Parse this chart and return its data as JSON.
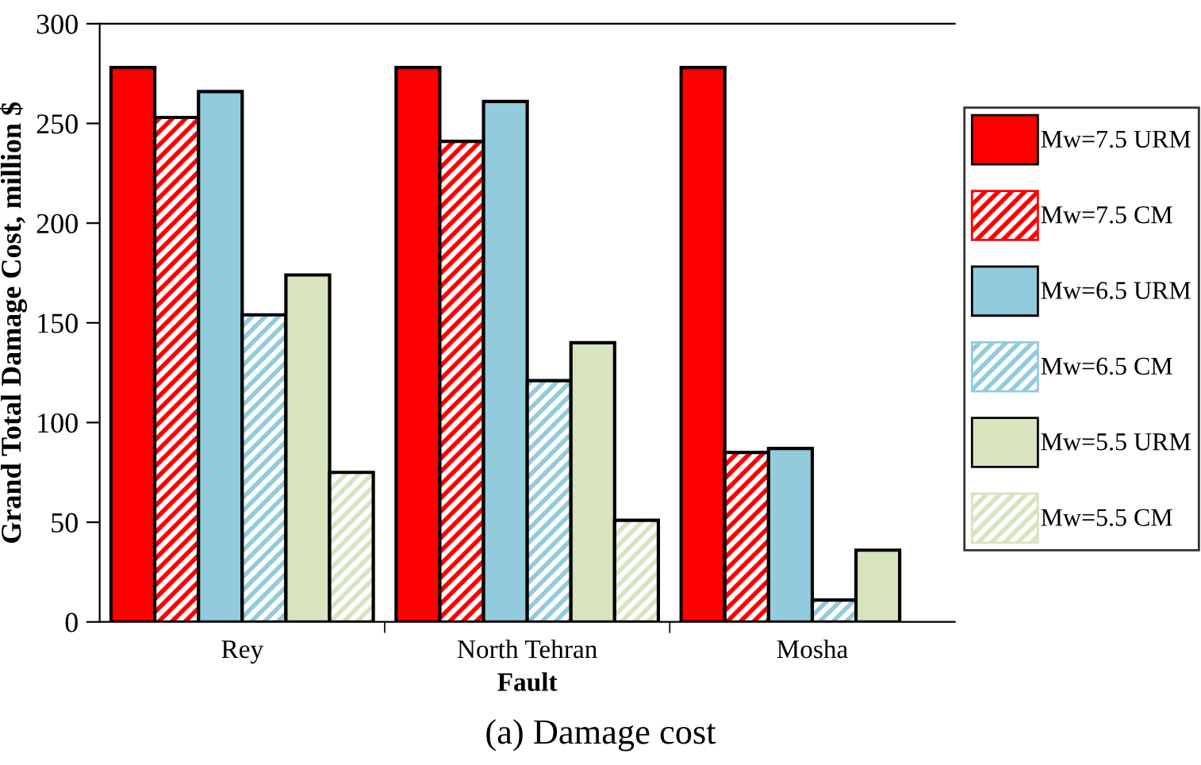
{
  "chart_data": {
    "type": "bar",
    "title": "(a) Damage cost",
    "xlabel": "Fault",
    "ylabel": "Grand Total Damage Cost, million $",
    "categories": [
      "Rey",
      "North Tehran",
      "Mosha"
    ],
    "series": [
      {
        "name": "Mw=7.5 URM",
        "color": "#ff0000",
        "values": [
          278,
          278,
          278
        ]
      },
      {
        "name": "Mw=7.5 CM",
        "color": "#ff0000",
        "values": [
          253,
          241,
          85
        ]
      },
      {
        "name": "Mw=6.5 URM",
        "color": "#92cbdc",
        "values": [
          266,
          261,
          87
        ]
      },
      {
        "name": "Mw=6.5 CM",
        "color": "#92cbdc",
        "values": [
          154,
          121,
          11
        ]
      },
      {
        "name": "Mw=5.5 URM",
        "color": "#d7e4bd",
        "values": [
          174,
          140,
          36
        ]
      },
      {
        "name": "Mw=5.5 CM",
        "color": "#d7e4bd",
        "values": [
          75,
          51,
          0
        ]
      }
    ],
    "ylim": [
      0,
      300
    ],
    "yticks": [
      0,
      50,
      100,
      150,
      200,
      250,
      300
    ],
    "grid": false,
    "legend": "right"
  }
}
